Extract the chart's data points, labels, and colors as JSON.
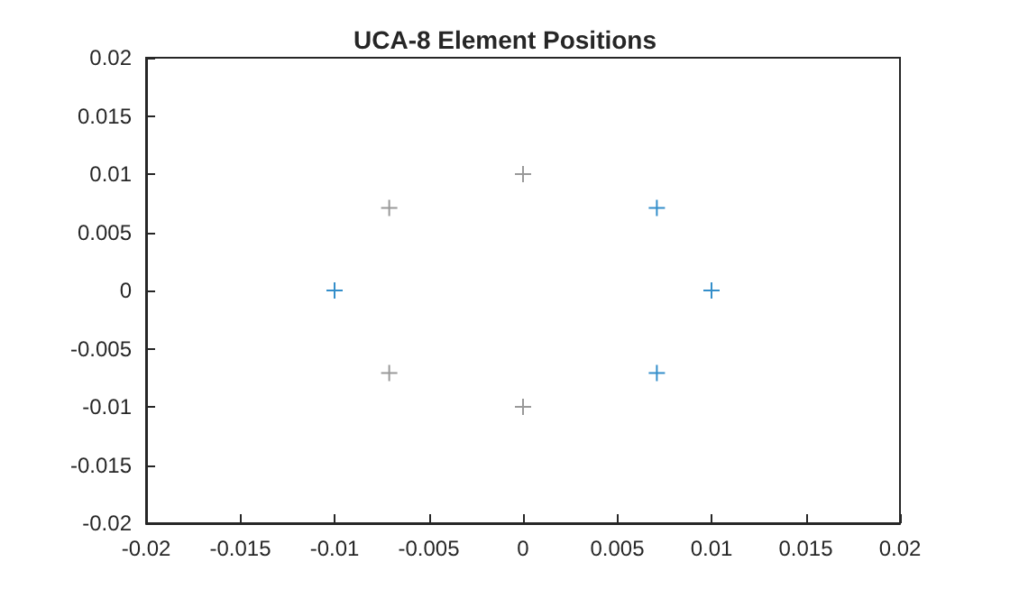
{
  "chart_data": {
    "type": "scatter",
    "title": "UCA-8 Element Positions",
    "marker": "cross",
    "grid": false,
    "xlim": [
      -0.02,
      0.02
    ],
    "xticks": [
      -0.02,
      -0.015,
      -0.01,
      -0.005,
      0,
      0.005,
      0.01,
      0.015,
      0.02
    ],
    "ylim": [
      -0.02,
      0.02
    ],
    "yticks": [
      -0.02,
      -0.015,
      -0.01,
      -0.005,
      0,
      0.005,
      0.01,
      0.015,
      0.02
    ],
    "series": [
      {
        "color": "#0072bd",
        "x": [
          -0.01,
          0.0071,
          0.01,
          0.0071
        ],
        "values": [
          0,
          0.0071,
          0,
          -0.0071
        ]
      },
      {
        "color": "#808080",
        "x": [
          -0.0071,
          0,
          -0.0071,
          0
        ],
        "values": [
          0.0071,
          0.01,
          -0.0071,
          -0.01
        ]
      }
    ]
  }
}
